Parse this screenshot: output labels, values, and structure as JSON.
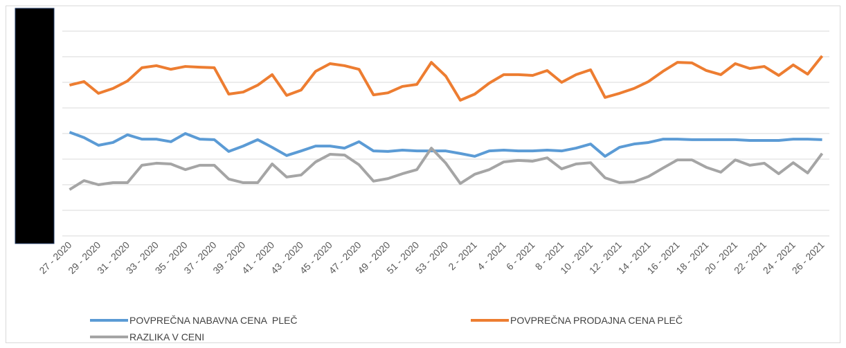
{
  "chart_data": {
    "type": "line",
    "categories": [
      "27 - 2020",
      null,
      "29 - 2020",
      null,
      "31 - 2020",
      null,
      "33 - 2020",
      null,
      "35 - 2020",
      null,
      "37 - 2020",
      null,
      "39 - 2020",
      null,
      "41 - 2020",
      null,
      "43 - 2020",
      null,
      "45 - 2020",
      null,
      "47 - 2020",
      null,
      "49 - 2020",
      null,
      "51 - 2020",
      null,
      "53 - 2020",
      null,
      "2 - 2021",
      null,
      "4 - 2021",
      null,
      "6 - 2021",
      null,
      "8 - 2021",
      null,
      "10 - 2021",
      null,
      "12 - 2021",
      null,
      "14 - 2021",
      null,
      "16 - 2021",
      null,
      "18 - 2021",
      null,
      "20 - 2021",
      null,
      "22 - 2021",
      null,
      "24 - 2021",
      null,
      "26 - 2021"
    ],
    "series": [
      {
        "name": "POVPREČNA NABAVNA CENA  PLEČ",
        "color": "#5b9bd5",
        "values": [
          4.05,
          3.84,
          3.54,
          3.65,
          3.95,
          3.78,
          3.78,
          3.68,
          4.0,
          3.78,
          3.76,
          3.3,
          3.51,
          3.76,
          3.46,
          3.14,
          3.32,
          3.51,
          3.51,
          3.43,
          3.68,
          3.32,
          3.3,
          3.35,
          3.32,
          3.32,
          3.32,
          3.22,
          3.11,
          3.32,
          3.35,
          3.32,
          3.32,
          3.35,
          3.32,
          3.43,
          3.59,
          3.11,
          3.46,
          3.59,
          3.65,
          3.78,
          3.78,
          3.76,
          3.76,
          3.76,
          3.76,
          3.73,
          3.73,
          3.73,
          3.78,
          3.78,
          3.76
        ]
      },
      {
        "name": "POVPREČNA PRODAJNA CENA PLEČ",
        "color": "#ed7d31",
        "values": [
          5.89,
          6.03,
          5.57,
          5.76,
          6.05,
          6.57,
          6.65,
          6.51,
          6.62,
          6.59,
          6.57,
          5.54,
          5.62,
          5.89,
          6.3,
          5.49,
          5.7,
          6.43,
          6.73,
          6.65,
          6.51,
          5.51,
          5.59,
          5.84,
          5.92,
          6.78,
          6.24,
          5.3,
          5.54,
          5.97,
          6.3,
          6.3,
          6.27,
          6.46,
          6.0,
          6.3,
          6.49,
          5.41,
          5.57,
          5.76,
          6.03,
          6.43,
          6.78,
          6.76,
          6.46,
          6.3,
          6.73,
          6.54,
          6.62,
          6.27,
          6.68,
          6.32,
          7.03
        ]
      },
      {
        "name": "RAZLIKA V CENI",
        "color": "#a5a5a5",
        "values": [
          1.81,
          2.16,
          2.0,
          2.08,
          2.08,
          2.76,
          2.84,
          2.81,
          2.59,
          2.76,
          2.76,
          2.22,
          2.08,
          2.08,
          2.81,
          2.3,
          2.38,
          2.89,
          3.19,
          3.16,
          2.78,
          2.14,
          2.24,
          2.43,
          2.59,
          3.43,
          2.84,
          2.05,
          2.41,
          2.59,
          2.89,
          2.95,
          2.92,
          3.05,
          2.62,
          2.81,
          2.86,
          2.27,
          2.08,
          2.11,
          2.32,
          2.65,
          2.97,
          2.97,
          2.68,
          2.49,
          2.97,
          2.76,
          2.84,
          2.43,
          2.86,
          2.46,
          3.22
        ]
      }
    ],
    "ylim": [
      0,
      8
    ],
    "yticks": [
      0,
      1,
      2,
      3,
      4,
      5,
      6,
      7,
      8
    ],
    "grid": true
  }
}
